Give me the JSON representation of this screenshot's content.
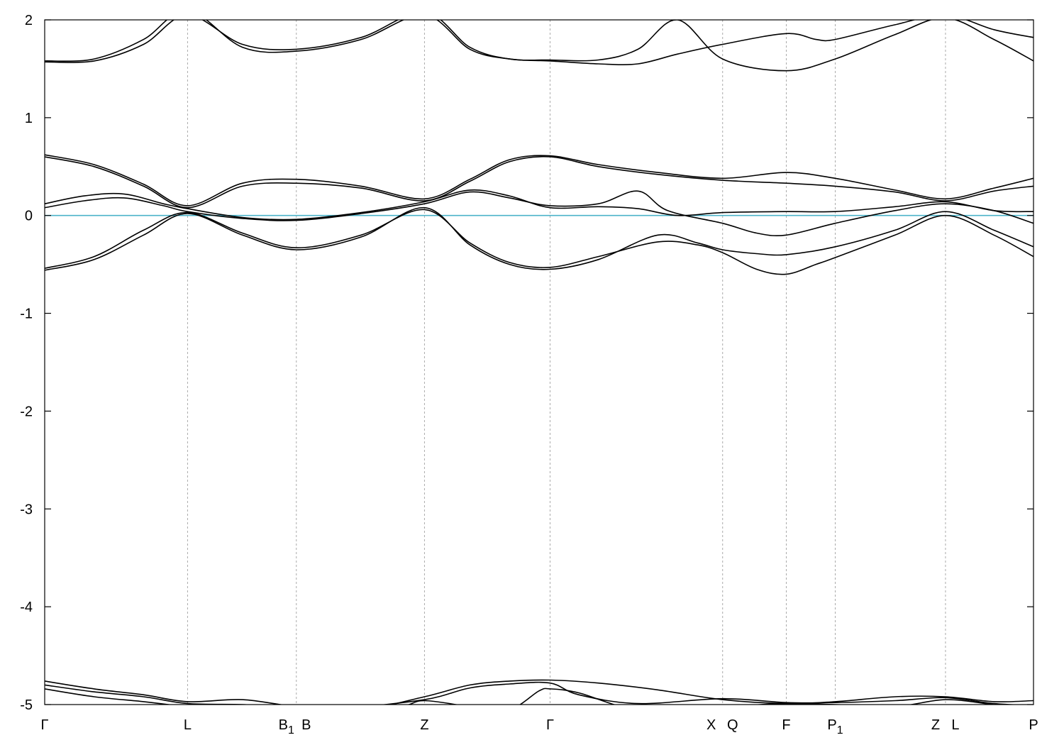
{
  "chart_data": {
    "type": "line",
    "ylim": [
      -5,
      2
    ],
    "yticks": [
      "2",
      "1",
      "0",
      "-1",
      "-2",
      "-3",
      "-4",
      "-5"
    ],
    "ytick_values": [
      2,
      1,
      0,
      -1,
      -2,
      -3,
      -4,
      -5
    ],
    "grid": "vertical dotted lines at high-symmetry points",
    "fermi_level": 0,
    "colors": {
      "bands": "#000000",
      "fermi": "#4bb3c9",
      "grid": "#aaaaaa"
    },
    "kpoints": [
      {
        "label": "Γ",
        "sub": "",
        "x": 0
      },
      {
        "label": "L",
        "sub": "",
        "x": 0.1445
      },
      {
        "label": "B",
        "sub": "1",
        "x": 0.2545
      },
      {
        "label": "B",
        "sub": "",
        "x": 0.2545
      },
      {
        "label": "Z",
        "sub": "",
        "x": 0.3841
      },
      {
        "label": "Γ",
        "sub": "",
        "x": 0.5111
      },
      {
        "label": "X",
        "sub": "",
        "x": 0.6856
      },
      {
        "label": "Q",
        "sub": "",
        "x": 0.6856
      },
      {
        "label": "F",
        "sub": "",
        "x": 0.75
      },
      {
        "label": "P",
        "sub": "1",
        "x": 0.7995
      },
      {
        "label": "Z",
        "sub": "",
        "x": 0.911
      },
      {
        "label": "L",
        "sub": "",
        "x": 0.911
      },
      {
        "label": "P",
        "sub": "",
        "x": 1.0
      }
    ],
    "kpoint_lines": [
      0.1445,
      0.2545,
      0.3841,
      0.5111,
      0.6856,
      0.75,
      0.7995,
      0.911
    ],
    "series": [
      {
        "points": [
          [
            0,
            -0.56
          ],
          [
            0.05,
            -0.45
          ],
          [
            0.1,
            -0.2
          ],
          [
            0.1445,
            0.02
          ],
          [
            0.2,
            -0.2
          ],
          [
            0.2545,
            -0.35
          ],
          [
            0.32,
            -0.22
          ],
          [
            0.3841,
            0.08
          ],
          [
            0.43,
            -0.3
          ],
          [
            0.47,
            -0.5
          ],
          [
            0.5111,
            -0.55
          ],
          [
            0.56,
            -0.45
          ],
          [
            0.62,
            -0.2
          ],
          [
            0.66,
            -0.28
          ],
          [
            0.6856,
            -0.35
          ],
          [
            0.72,
            -0.39
          ],
          [
            0.75,
            -0.4
          ],
          [
            0.7995,
            -0.32
          ],
          [
            0.86,
            -0.15
          ],
          [
            0.911,
            0.04
          ],
          [
            0.96,
            -0.15
          ],
          [
            1.0,
            -0.32
          ]
        ]
      },
      {
        "points": [
          [
            0,
            -0.54
          ],
          [
            0.05,
            -0.42
          ],
          [
            0.1,
            -0.15
          ],
          [
            0.1445,
            0.03
          ],
          [
            0.2,
            -0.18
          ],
          [
            0.2545,
            -0.33
          ],
          [
            0.32,
            -0.2
          ],
          [
            0.3841,
            0.06
          ],
          [
            0.43,
            -0.28
          ],
          [
            0.47,
            -0.48
          ],
          [
            0.5111,
            -0.53
          ],
          [
            0.56,
            -0.42
          ],
          [
            0.62,
            -0.27
          ],
          [
            0.66,
            -0.3
          ],
          [
            0.6856,
            -0.38
          ],
          [
            0.72,
            -0.55
          ],
          [
            0.75,
            -0.6
          ],
          [
            0.78,
            -0.5
          ],
          [
            0.7995,
            -0.43
          ],
          [
            0.86,
            -0.2
          ],
          [
            0.911,
            0.0
          ],
          [
            0.96,
            -0.2
          ],
          [
            1.0,
            -0.42
          ]
        ]
      },
      {
        "points": [
          [
            0,
            0.08
          ],
          [
            0.04,
            0.15
          ],
          [
            0.08,
            0.18
          ],
          [
            0.12,
            0.1
          ],
          [
            0.1445,
            0.04
          ],
          [
            0.2,
            -0.03
          ],
          [
            0.2545,
            -0.05
          ],
          [
            0.32,
            0.02
          ],
          [
            0.3841,
            0.12
          ],
          [
            0.43,
            0.24
          ],
          [
            0.47,
            0.18
          ],
          [
            0.5111,
            0.1
          ],
          [
            0.56,
            0.12
          ],
          [
            0.6,
            0.25
          ],
          [
            0.63,
            0.05
          ],
          [
            0.6856,
            -0.08
          ],
          [
            0.72,
            -0.18
          ],
          [
            0.75,
            -0.2
          ],
          [
            0.7995,
            -0.08
          ],
          [
            0.86,
            0.05
          ],
          [
            0.911,
            0.12
          ],
          [
            0.96,
            0.05
          ],
          [
            1.0,
            -0.08
          ]
        ]
      },
      {
        "points": [
          [
            0,
            0.12
          ],
          [
            0.04,
            0.2
          ],
          [
            0.08,
            0.22
          ],
          [
            0.12,
            0.12
          ],
          [
            0.1445,
            0.07
          ],
          [
            0.2,
            -0.02
          ],
          [
            0.2545,
            -0.04
          ],
          [
            0.32,
            0.03
          ],
          [
            0.3841,
            0.14
          ],
          [
            0.43,
            0.26
          ],
          [
            0.47,
            0.2
          ],
          [
            0.5111,
            0.08
          ],
          [
            0.56,
            0.09
          ],
          [
            0.6,
            0.07
          ],
          [
            0.64,
            0.0
          ],
          [
            0.6856,
            0.03
          ],
          [
            0.75,
            0.04
          ],
          [
            0.7995,
            0.04
          ],
          [
            0.86,
            0.09
          ],
          [
            0.911,
            0.14
          ],
          [
            0.96,
            0.05
          ],
          [
            1.0,
            0.04
          ]
        ]
      },
      {
        "points": [
          [
            0,
            0.6
          ],
          [
            0.05,
            0.5
          ],
          [
            0.1,
            0.3
          ],
          [
            0.1445,
            0.08
          ],
          [
            0.2,
            0.3
          ],
          [
            0.2545,
            0.33
          ],
          [
            0.32,
            0.28
          ],
          [
            0.3841,
            0.15
          ],
          [
            0.43,
            0.35
          ],
          [
            0.47,
            0.55
          ],
          [
            0.5111,
            0.6
          ],
          [
            0.56,
            0.5
          ],
          [
            0.62,
            0.42
          ],
          [
            0.6856,
            0.36
          ],
          [
            0.75,
            0.33
          ],
          [
            0.7995,
            0.3
          ],
          [
            0.86,
            0.24
          ],
          [
            0.911,
            0.15
          ],
          [
            0.96,
            0.25
          ],
          [
            1.0,
            0.3
          ]
        ]
      },
      {
        "points": [
          [
            0,
            0.62
          ],
          [
            0.05,
            0.52
          ],
          [
            0.1,
            0.32
          ],
          [
            0.1445,
            0.1
          ],
          [
            0.2,
            0.33
          ],
          [
            0.2545,
            0.37
          ],
          [
            0.32,
            0.3
          ],
          [
            0.3841,
            0.17
          ],
          [
            0.43,
            0.37
          ],
          [
            0.47,
            0.57
          ],
          [
            0.5111,
            0.61
          ],
          [
            0.56,
            0.52
          ],
          [
            0.62,
            0.44
          ],
          [
            0.6856,
            0.38
          ],
          [
            0.75,
            0.44
          ],
          [
            0.7995,
            0.38
          ],
          [
            0.86,
            0.26
          ],
          [
            0.911,
            0.17
          ],
          [
            0.96,
            0.28
          ],
          [
            1.0,
            0.38
          ]
        ]
      },
      {
        "points": [
          [
            0,
            1.58
          ],
          [
            0.05,
            1.6
          ],
          [
            0.1,
            1.8
          ],
          [
            0.1445,
            2.1
          ],
          [
            0.2,
            1.72
          ],
          [
            0.2545,
            1.68
          ],
          [
            0.32,
            1.8
          ],
          [
            0.3841,
            2.05
          ],
          [
            0.43,
            1.7
          ],
          [
            0.47,
            1.6
          ],
          [
            0.5111,
            1.58
          ],
          [
            0.56,
            1.55
          ],
          [
            0.6,
            1.55
          ],
          [
            0.64,
            1.65
          ],
          [
            0.6856,
            1.75
          ],
          [
            0.75,
            1.86
          ],
          [
            0.78,
            1.8
          ],
          [
            0.7995,
            1.8
          ],
          [
            0.86,
            1.95
          ],
          [
            0.911,
            2.05
          ],
          [
            0.96,
            1.9
          ],
          [
            1.0,
            1.82
          ]
        ]
      },
      {
        "points": [
          [
            0,
            1.57
          ],
          [
            0.05,
            1.58
          ],
          [
            0.1,
            1.75
          ],
          [
            0.1445,
            2.05
          ],
          [
            0.2,
            1.75
          ],
          [
            0.2545,
            1.7
          ],
          [
            0.32,
            1.82
          ],
          [
            0.3841,
            2.08
          ],
          [
            0.43,
            1.72
          ],
          [
            0.47,
            1.6
          ],
          [
            0.5111,
            1.59
          ],
          [
            0.56,
            1.59
          ],
          [
            0.6,
            1.7
          ],
          [
            0.64,
            2.0
          ],
          [
            0.6856,
            1.6
          ],
          [
            0.75,
            1.48
          ],
          [
            0.7995,
            1.6
          ],
          [
            0.86,
            1.85
          ],
          [
            0.911,
            2.02
          ],
          [
            0.96,
            1.8
          ],
          [
            1.0,
            1.58
          ]
        ]
      },
      {
        "points": [
          [
            0,
            -4.76
          ],
          [
            0.05,
            -4.84
          ],
          [
            0.1,
            -4.9
          ],
          [
            0.1445,
            -4.97
          ],
          [
            0.2,
            -4.95
          ],
          [
            0.2545,
            -5.02
          ],
          [
            0.32,
            -5.05
          ],
          [
            0.3841,
            -4.92
          ],
          [
            0.43,
            -4.8
          ],
          [
            0.47,
            -4.76
          ],
          [
            0.5111,
            -4.75
          ],
          [
            0.56,
            -4.78
          ],
          [
            0.62,
            -4.85
          ],
          [
            0.6856,
            -4.95
          ],
          [
            0.75,
            -4.99
          ],
          [
            0.7995,
            -4.97
          ],
          [
            0.86,
            -4.92
          ],
          [
            0.911,
            -4.92
          ],
          [
            0.96,
            -4.97
          ],
          [
            1.0,
            -4.96
          ]
        ]
      },
      {
        "points": [
          [
            0,
            -4.8
          ],
          [
            0.05,
            -4.87
          ],
          [
            0.1,
            -4.92
          ],
          [
            0.1445,
            -4.99
          ],
          [
            0.2,
            -5.0
          ],
          [
            0.2545,
            -5.03
          ],
          [
            0.3,
            -5.04
          ],
          [
            0.3841,
            -4.95
          ],
          [
            0.43,
            -4.83
          ],
          [
            0.47,
            -4.79
          ],
          [
            0.5111,
            -4.78
          ],
          [
            0.54,
            -4.9
          ],
          [
            0.6,
            -4.99
          ],
          [
            0.6856,
            -4.94
          ],
          [
            0.75,
            -4.98
          ],
          [
            0.7995,
            -4.98
          ],
          [
            0.86,
            -4.96
          ],
          [
            0.911,
            -4.93
          ],
          [
            0.96,
            -4.99
          ],
          [
            1.0,
            -5.01
          ]
        ]
      },
      {
        "points": [
          [
            0,
            -4.84
          ],
          [
            0.05,
            -4.92
          ],
          [
            0.1,
            -4.97
          ],
          [
            0.1445,
            -5.02
          ],
          [
            0.2,
            -5.04
          ],
          [
            0.2545,
            -5.05
          ],
          [
            0.3,
            -5.08
          ],
          [
            0.36,
            -5.02
          ],
          [
            0.3841,
            -4.96
          ],
          [
            0.43,
            -5.02
          ],
          [
            0.47,
            -5.05
          ],
          [
            0.5,
            -4.86
          ],
          [
            0.5111,
            -4.84
          ],
          [
            0.54,
            -4.88
          ],
          [
            0.6,
            -5.05
          ],
          [
            0.6856,
            -5.02
          ],
          [
            0.75,
            -4.99
          ],
          [
            0.7995,
            -5.0
          ],
          [
            0.86,
            -5.02
          ],
          [
            0.911,
            -4.95
          ],
          [
            0.96,
            -5.0
          ],
          [
            1.0,
            -5.03
          ]
        ]
      }
    ]
  }
}
